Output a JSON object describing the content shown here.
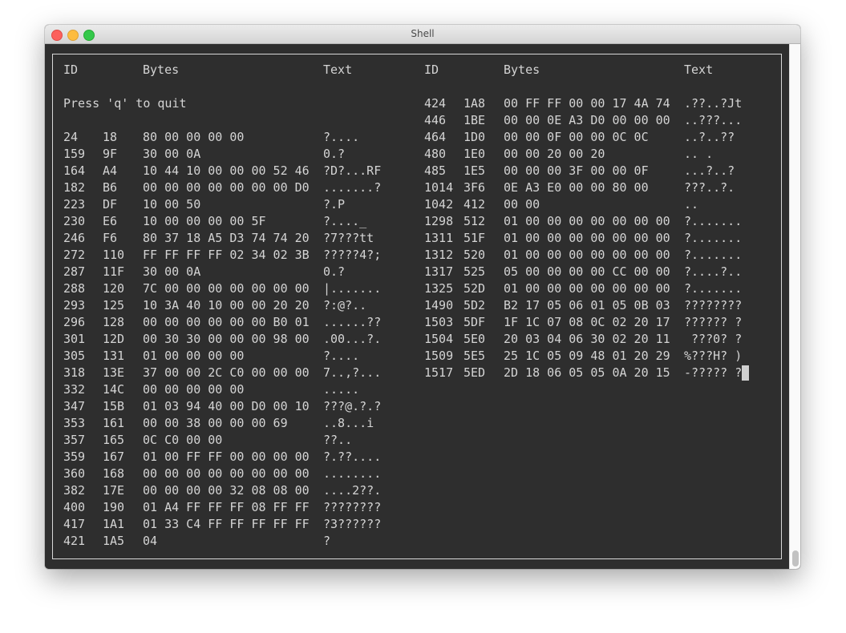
{
  "window": {
    "title": "Shell"
  },
  "headers": {
    "id": "ID",
    "bytes": "Bytes",
    "text": "Text"
  },
  "prompt": "Press 'q' to quit",
  "left_rows": [
    [
      "24",
      "18",
      "80 00 00 00 00",
      "?...."
    ],
    [
      "159",
      "9F",
      "30 00 0A",
      "0.?"
    ],
    [
      "164",
      "A4",
      "10 44 10 00 00 00 52 46",
      "?D?...RF"
    ],
    [
      "182",
      "B6",
      "00 00 00 00 00 00 00 D0",
      ".......?"
    ],
    [
      "223",
      "DF",
      "10 00 50",
      "?.P"
    ],
    [
      "230",
      "E6",
      "10 00 00 00 00 5F",
      "?...._"
    ],
    [
      "246",
      "F6",
      "80 37 18 A5 D3 74 74 20",
      "?7???tt"
    ],
    [
      "272",
      "110",
      "FF FF FF FF 02 34 02 3B",
      "?????4?;"
    ],
    [
      "287",
      "11F",
      "30 00 0A",
      "0.?"
    ],
    [
      "288",
      "120",
      "7C 00 00 00 00 00 00 00",
      "|......."
    ],
    [
      "293",
      "125",
      "10 3A 40 10 00 00 20 20",
      "?:@?.."
    ],
    [
      "296",
      "128",
      "00 00 00 00 00 00 B0 01",
      "......??"
    ],
    [
      "301",
      "12D",
      "00 30 30 00 00 00 98 00",
      ".00...?."
    ],
    [
      "305",
      "131",
      "01 00 00 00 00",
      "?...."
    ],
    [
      "318",
      "13E",
      "37 00 00 2C C0 00 00 00",
      "7..,?..."
    ],
    [
      "332",
      "14C",
      "00 00 00 00 00",
      "....."
    ],
    [
      "347",
      "15B",
      "01 03 94 40 00 D0 00 10",
      "???@.?.?"
    ],
    [
      "353",
      "161",
      "00 00 38 00 00 00 69",
      "..8...i"
    ],
    [
      "357",
      "165",
      "0C C0 00 00",
      "??.."
    ],
    [
      "359",
      "167",
      "01 00 FF FF 00 00 00 00",
      "?.??...."
    ],
    [
      "360",
      "168",
      "00 00 00 00 00 00 00 00",
      "........"
    ],
    [
      "382",
      "17E",
      "00 00 00 00 32 08 08 00",
      "....2??."
    ],
    [
      "400",
      "190",
      "01 A4 FF FF FF 08 FF FF",
      "????????"
    ],
    [
      "417",
      "1A1",
      "01 33 C4 FF FF FF FF FF",
      "?3??????"
    ],
    [
      "421",
      "1A5",
      "04",
      "?"
    ]
  ],
  "right_rows": [
    [
      "424",
      "1A8",
      "00 FF FF 00 00 17 4A 74",
      ".??..?Jt"
    ],
    [
      "446",
      "1BE",
      "00 00 0E A3 D0 00 00 00",
      "..???..."
    ],
    [
      "464",
      "1D0",
      "00 00 0F 00 00 0C 0C",
      "..?..??"
    ],
    [
      "480",
      "1E0",
      "00 00 20 00 20",
      ".. ."
    ],
    [
      "485",
      "1E5",
      "00 00 00 3F 00 00 0F",
      "...?..?"
    ],
    [
      "1014",
      "3F6",
      "0E A3 E0 00 00 80 00",
      "???..?."
    ],
    [
      "1042",
      "412",
      "00 00",
      ".."
    ],
    [
      "1298",
      "512",
      "01 00 00 00 00 00 00 00",
      "?......."
    ],
    [
      "1311",
      "51F",
      "01 00 00 00 00 00 00 00",
      "?......."
    ],
    [
      "1312",
      "520",
      "01 00 00 00 00 00 00 00",
      "?......."
    ],
    [
      "1317",
      "525",
      "05 00 00 00 00 CC 00 00",
      "?....?.."
    ],
    [
      "1325",
      "52D",
      "01 00 00 00 00 00 00 00",
      "?......."
    ],
    [
      "1490",
      "5D2",
      "B2 17 05 06 01 05 0B 03",
      "????????"
    ],
    [
      "1503",
      "5DF",
      "1F 1C 07 08 0C 02 20 17",
      "?????? ?"
    ],
    [
      "1504",
      "5E0",
      "20 03 04 06 30 02 20 11",
      " ???0? ?"
    ],
    [
      "1509",
      "5E5",
      "25 1C 05 09 48 01 20 29",
      "%???H? )"
    ],
    [
      "1517",
      "5ED",
      "2D 18 06 05 05 0A 20 15",
      "-????? ?"
    ]
  ]
}
